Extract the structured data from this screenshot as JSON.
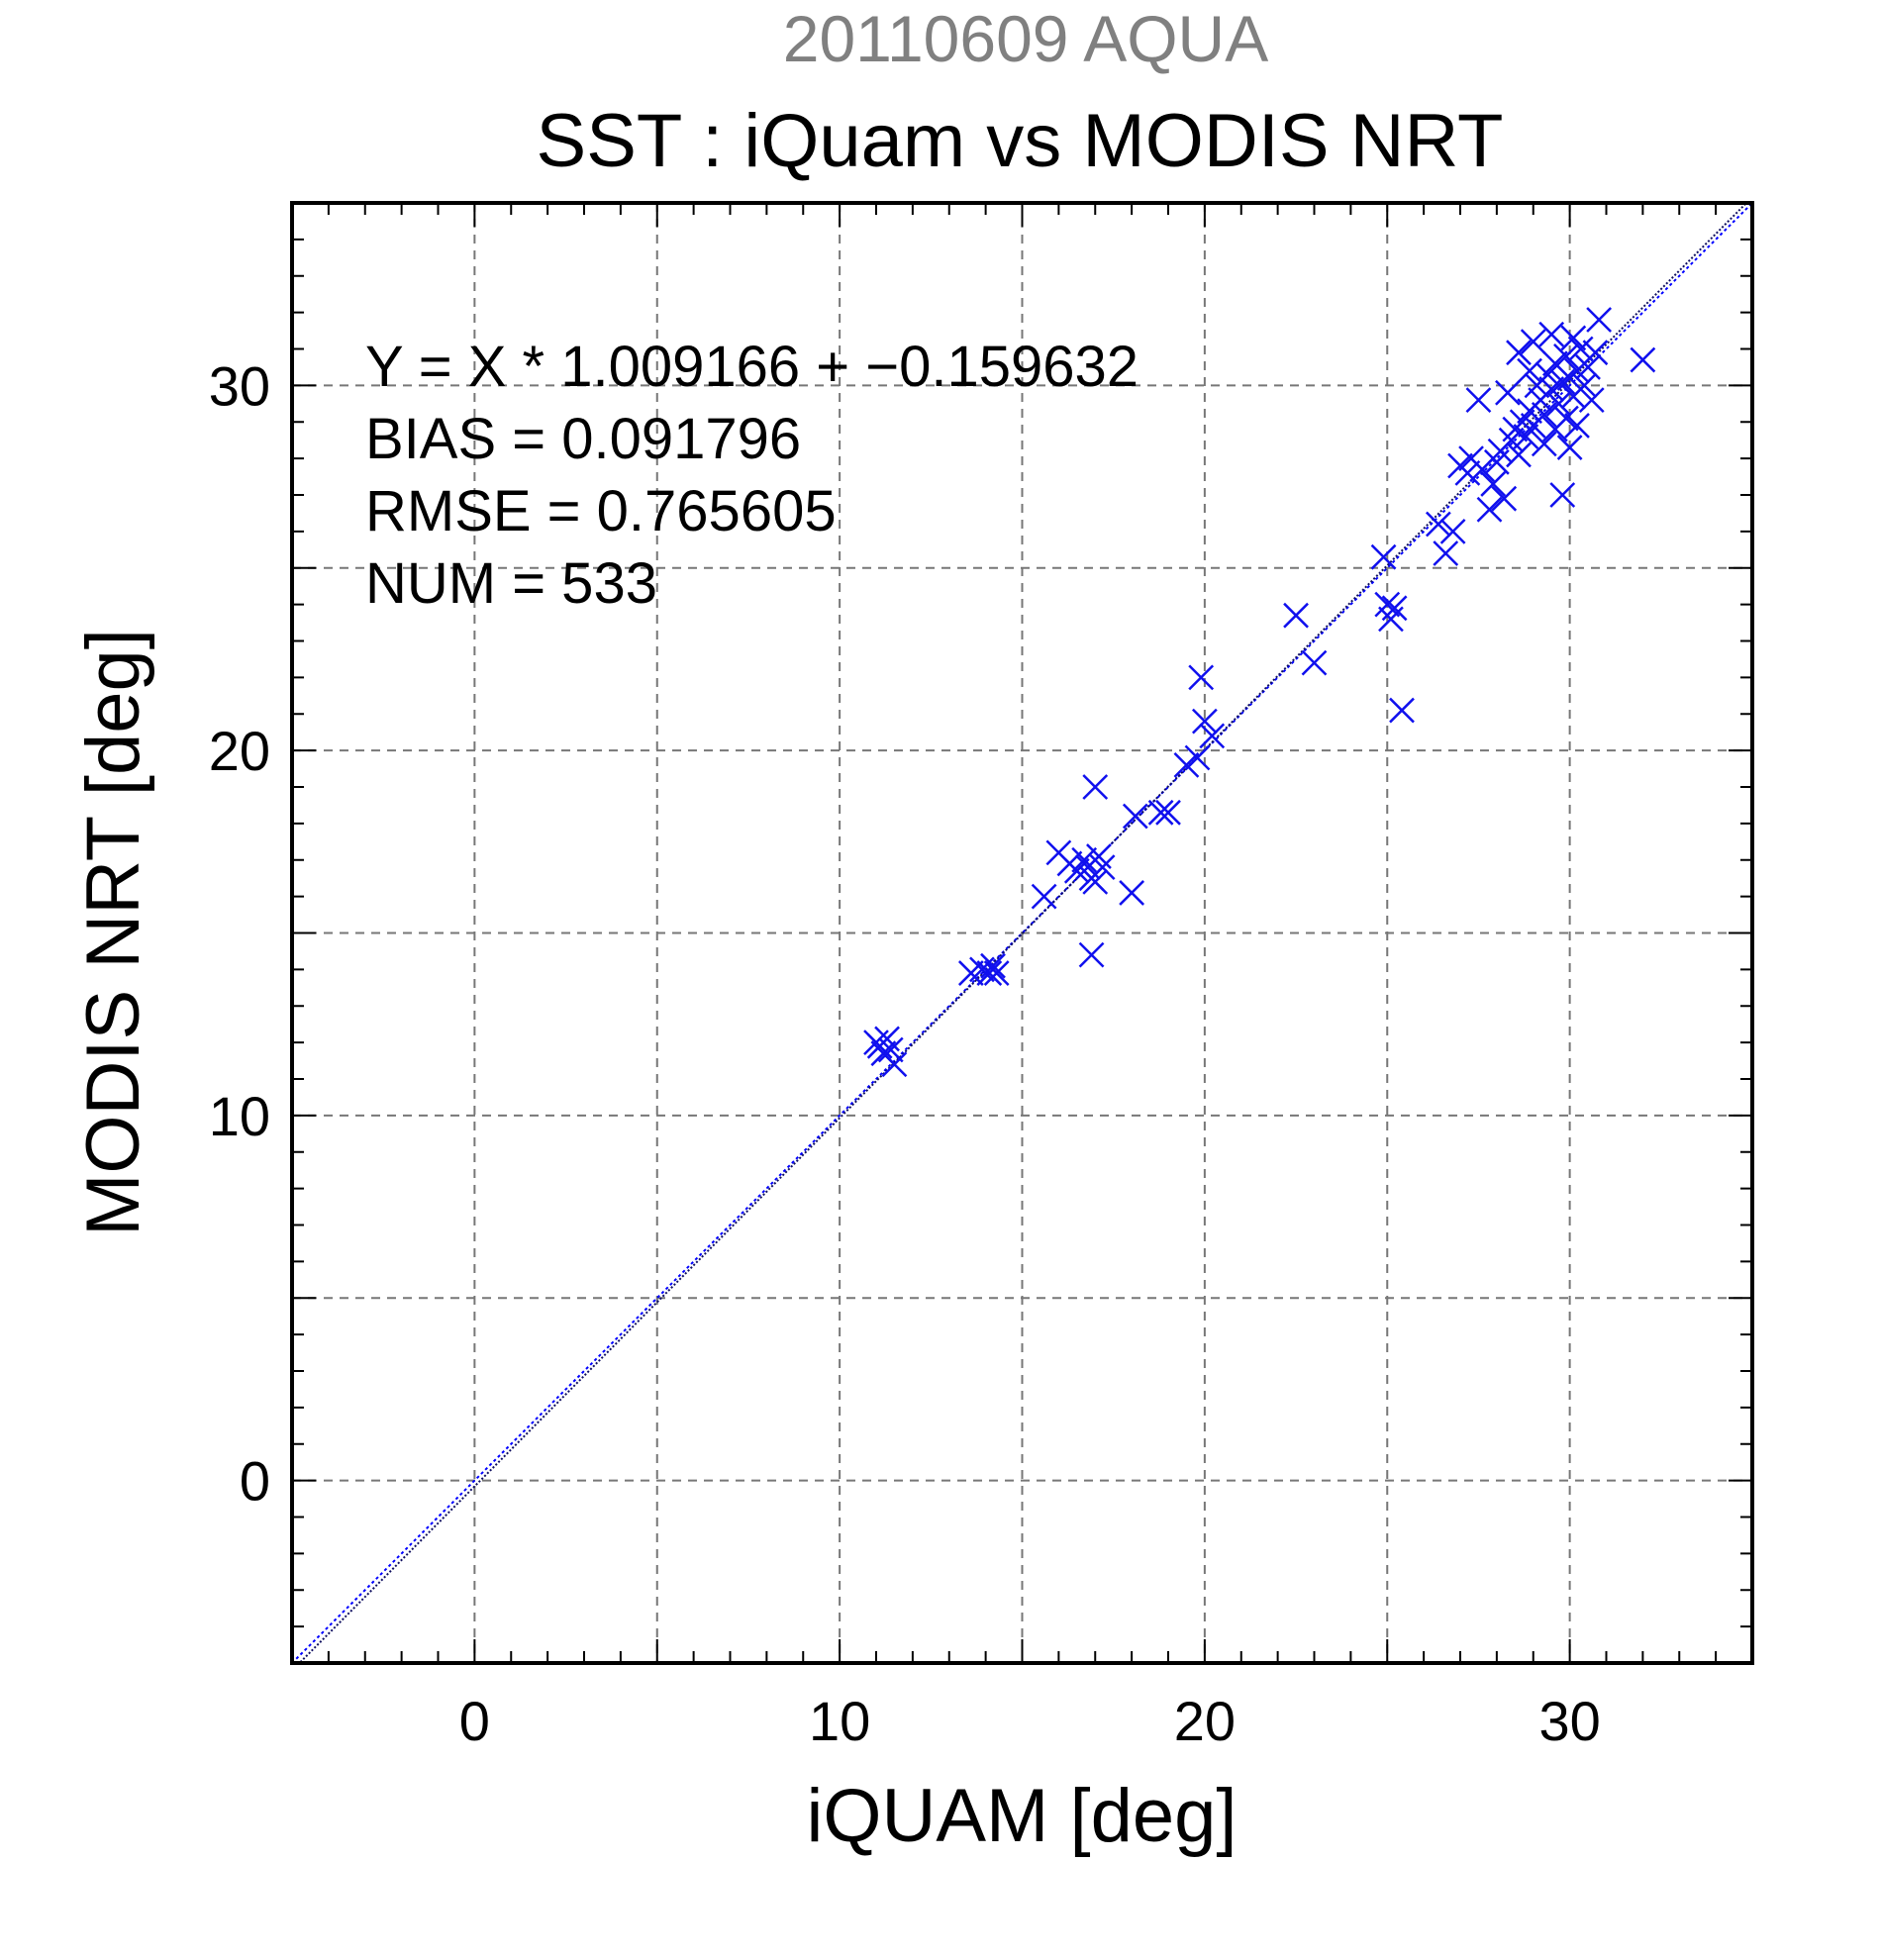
{
  "chart_data": {
    "type": "scatter",
    "supertitle": "20110609 AQUA",
    "title": "SST : iQuam vs MODIS NRT",
    "xlabel": "iQUAM [deg]",
    "ylabel": "MODIS NRT [deg]",
    "xlim": [
      -5,
      35
    ],
    "ylim": [
      -5,
      35
    ],
    "xticks": [
      0,
      10,
      20,
      30
    ],
    "yticks": [
      0,
      10,
      20,
      30
    ],
    "grid": true,
    "grid_step": 5,
    "marker": "x",
    "colors": {
      "points": "#1010ee",
      "fit_line": "#101060",
      "identity_line": "#0000ff",
      "grid": "#777777",
      "supertitle": "#808080"
    },
    "stats": [
      "Y = X * 1.009166 + −0.159632",
      "BIAS = 0.091796",
      "RMSE = 0.765605",
      "NUM = 533"
    ],
    "fit": {
      "slope": 1.009166,
      "intercept": -0.159632
    },
    "series": [
      {
        "values": [
          [
            11.0,
            12.0
          ],
          [
            11.2,
            11.7
          ],
          [
            11.3,
            12.1
          ],
          [
            11.5,
            11.4
          ],
          [
            11.1,
            11.9
          ],
          [
            11.4,
            11.8
          ],
          [
            13.6,
            13.9
          ],
          [
            13.9,
            14.0
          ],
          [
            14.1,
            13.9
          ],
          [
            14.3,
            13.9
          ],
          [
            14.2,
            14.1
          ],
          [
            15.6,
            16.0
          ],
          [
            16.0,
            17.2
          ],
          [
            16.3,
            16.9
          ],
          [
            16.5,
            16.7
          ],
          [
            16.7,
            17.0
          ],
          [
            16.9,
            16.5
          ],
          [
            17.0,
            16.4
          ],
          [
            17.1,
            17.1
          ],
          [
            16.8,
            16.8
          ],
          [
            17.0,
            19.0
          ],
          [
            16.9,
            14.4
          ],
          [
            17.2,
            16.8
          ],
          [
            18.0,
            16.1
          ],
          [
            18.1,
            18.2
          ],
          [
            18.8,
            18.3
          ],
          [
            19.0,
            18.3
          ],
          [
            19.5,
            19.6
          ],
          [
            19.8,
            19.8
          ],
          [
            19.9,
            22.0
          ],
          [
            20.0,
            20.8
          ],
          [
            20.2,
            20.4
          ],
          [
            22.5,
            23.7
          ],
          [
            23.0,
            22.4
          ],
          [
            24.9,
            25.3
          ],
          [
            25.0,
            24.0
          ],
          [
            25.1,
            23.6
          ],
          [
            25.2,
            23.9
          ],
          [
            25.4,
            21.1
          ],
          [
            26.4,
            26.2
          ],
          [
            26.6,
            25.4
          ],
          [
            26.8,
            26.0
          ],
          [
            27.0,
            27.8
          ],
          [
            27.2,
            27.6
          ],
          [
            27.3,
            28.0
          ],
          [
            27.5,
            29.6
          ],
          [
            27.6,
            27.7
          ],
          [
            27.8,
            26.6
          ],
          [
            27.9,
            27.3
          ],
          [
            28.0,
            27.9
          ],
          [
            28.1,
            28.2
          ],
          [
            28.2,
            26.9
          ],
          [
            28.3,
            29.8
          ],
          [
            28.4,
            28.5
          ],
          [
            28.5,
            28.8
          ],
          [
            28.6,
            28.1
          ],
          [
            28.7,
            29.0
          ],
          [
            28.8,
            28.6
          ],
          [
            28.9,
            29.3
          ],
          [
            29.0,
            28.9
          ],
          [
            29.0,
            31.2
          ],
          [
            29.1,
            30.0
          ],
          [
            29.2,
            29.6
          ],
          [
            29.3,
            29.2
          ],
          [
            29.4,
            30.3
          ],
          [
            29.5,
            29.9
          ],
          [
            29.6,
            30.6
          ],
          [
            29.7,
            29.5
          ],
          [
            29.8,
            30.1
          ],
          [
            29.9,
            30.8
          ],
          [
            30.0,
            30.2
          ],
          [
            30.0,
            28.3
          ],
          [
            29.8,
            27.0
          ],
          [
            30.1,
            29.7
          ],
          [
            30.2,
            30.4
          ],
          [
            30.3,
            31.0
          ],
          [
            30.4,
            30.0
          ],
          [
            30.5,
            30.5
          ],
          [
            30.6,
            29.6
          ],
          [
            30.7,
            30.9
          ],
          [
            30.2,
            28.9
          ],
          [
            29.9,
            29.1
          ],
          [
            29.5,
            31.4
          ],
          [
            30.8,
            31.8
          ],
          [
            32.0,
            30.7
          ],
          [
            28.6,
            30.9
          ],
          [
            29.3,
            28.4
          ],
          [
            30.1,
            31.3
          ],
          [
            29.6,
            28.8
          ],
          [
            28.9,
            30.4
          ]
        ]
      }
    ]
  }
}
